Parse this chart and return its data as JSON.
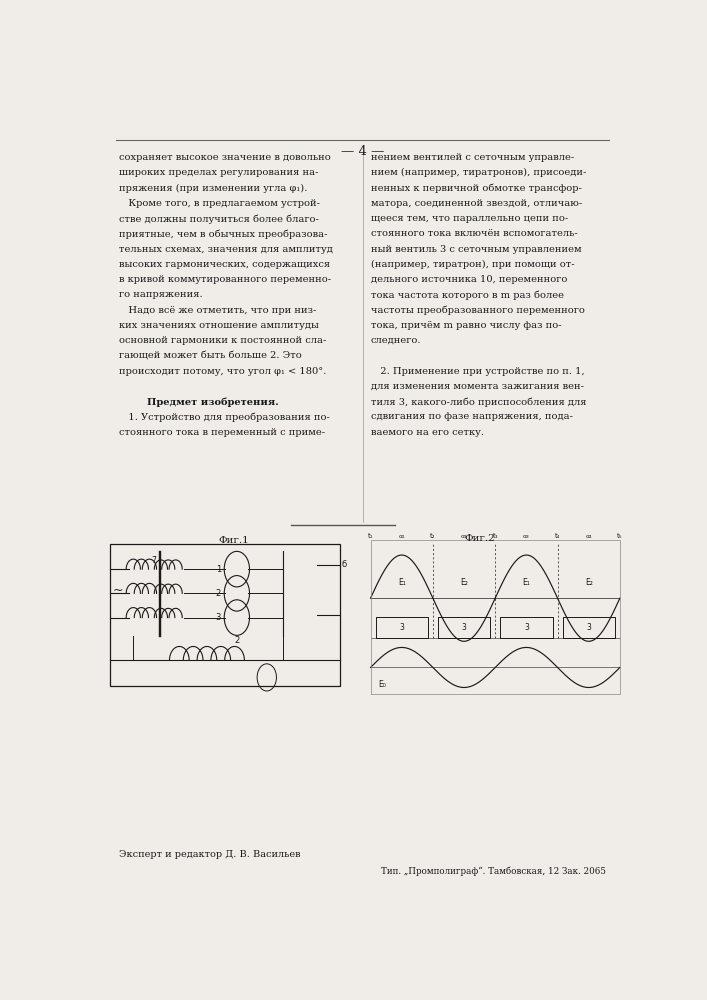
{
  "page_number": "4",
  "background_color": "#f0ede8",
  "text_color": "#1a1a1a",
  "left_column_lines": [
    "сохраняет высокое значение в довольно",
    "широких пределах регулирования на-",
    "пряжения (при изменении угла φ₁).",
    "   Кроме того, в предлагаемом устрой-",
    "стве должны получиться более благо-",
    "приятные, чем в обычных преобразова-",
    "тельных схемах, значения для амплитуд",
    "высоких гармонических, содержащихся",
    "в кривой коммутированного переменно-",
    "го напряжения.",
    "   Надо всё же отметить, что при низ-",
    "ких значениях отношение амплитуды",
    "основной гармоники к постоянной сла-",
    "гающей может быть больше 2. Это",
    "происходит потому, что угол φ₁ < 180°.",
    "",
    "        Предмет изобретения.",
    "   1. Устройство для преобразования по-",
    "стоянного тока в переменный с приме-"
  ],
  "right_column_lines": [
    "нением вентилей с сеточным управле-",
    "нием (например, тиратронов), присоеди-",
    "ненных к первичной обмотке трансфор-",
    "матора, соединенной звездой, отличаю-",
    "щееся тем, что параллельно цепи по-",
    "стоянного тока включён вспомогатель-",
    "ный вентиль 3 с сеточным управлением",
    "(например, тиратрон), при помощи от-",
    "дельного источника 10, переменного",
    "тока частота которого в m раз более",
    "частоты преобразованного переменного",
    "тока, причём m равно числу фаз по-",
    "следнего.",
    "",
    "   2. Применение при устройстве по п. 1,",
    "для изменения момента зажигания вен-",
    "тиля 3, какого-либо приспособления для",
    "сдвигания по фазе напряжения, пода-",
    "ваемого на его сетку."
  ],
  "bottom_text_left": "Эксперт и редактор Д. В. Васильев",
  "bottom_text_right": "Тип. „Промполиграф“. Тамбовская, 12 Зак. 2065",
  "fig1_label": "Φиг.1",
  "fig2_label": "Φиг.2"
}
